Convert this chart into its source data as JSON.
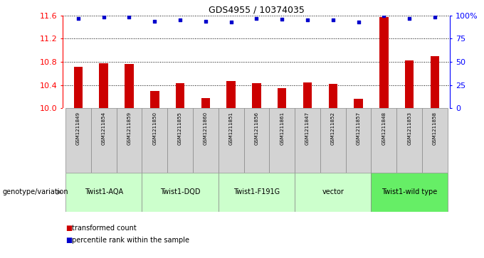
{
  "title": "GDS4955 / 10374035",
  "samples": [
    "GSM1211849",
    "GSM1211854",
    "GSM1211859",
    "GSM1211850",
    "GSM1211855",
    "GSM1211860",
    "GSM1211851",
    "GSM1211856",
    "GSM1211861",
    "GSM1211847",
    "GSM1211852",
    "GSM1211857",
    "GSM1211848",
    "GSM1211853",
    "GSM1211858"
  ],
  "transformed_count": [
    10.72,
    10.78,
    10.76,
    10.3,
    10.43,
    10.18,
    10.47,
    10.44,
    10.35,
    10.45,
    10.42,
    10.17,
    11.57,
    10.83,
    10.9
  ],
  "percentile_rank": [
    97,
    98,
    98,
    94,
    95,
    94,
    93,
    97,
    96,
    95,
    95,
    93,
    100,
    97,
    98
  ],
  "ylim_left": [
    10.0,
    11.6
  ],
  "ylim_right": [
    0,
    100
  ],
  "yticks_left": [
    10.0,
    10.4,
    10.8,
    11.2,
    11.6
  ],
  "yticks_right": [
    0,
    25,
    50,
    75,
    100
  ],
  "ytick_labels_right": [
    "0",
    "25",
    "50",
    "75",
    "100%"
  ],
  "bar_color": "#cc0000",
  "dot_color": "#0000cc",
  "groups": [
    {
      "label": "Twist1-AQA",
      "start": 0,
      "end": 3,
      "color": "#ccffcc"
    },
    {
      "label": "Twist1-DQD",
      "start": 3,
      "end": 6,
      "color": "#ccffcc"
    },
    {
      "label": "Twist1-F191G",
      "start": 6,
      "end": 9,
      "color": "#ccffcc"
    },
    {
      "label": "vector",
      "start": 9,
      "end": 12,
      "color": "#ccffcc"
    },
    {
      "label": "Twist1-wild type",
      "start": 12,
      "end": 15,
      "color": "#66ee66"
    }
  ],
  "legend_red_label": "transformed count",
  "legend_blue_label": "percentile rank within the sample",
  "genotype_label": "genotype/variation",
  "bg_color_sample": "#d3d3d3",
  "fig_width": 6.8,
  "fig_height": 3.63,
  "fig_dpi": 100
}
